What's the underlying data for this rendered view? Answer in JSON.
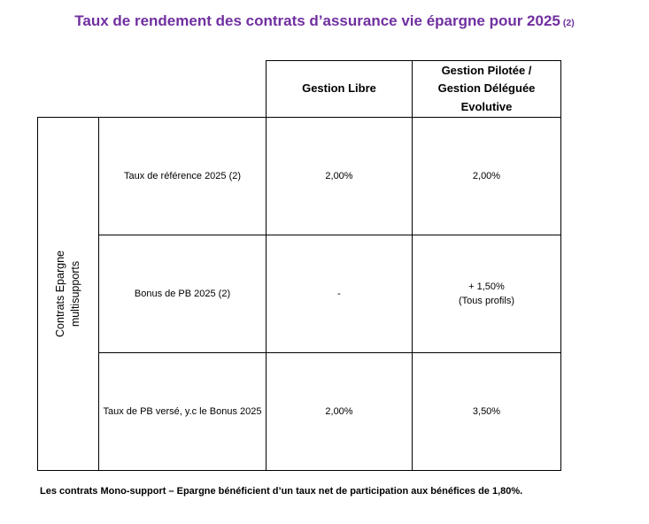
{
  "title": {
    "text": "Taux de rendement des contrats d’assurance vie épargne pour 2025",
    "footnote_ref": "(2)",
    "color": "#7030A0"
  },
  "table": {
    "border_color": "#000000",
    "row_group_label": [
      "Contrats Epargne",
      "multisupports"
    ],
    "column_headers": [
      "Gestion Libre",
      "Gestion Pilotée / Gestion Déléguée Evolutive"
    ],
    "rows": [
      {
        "label": "Taux de référence 2025 (2)",
        "values": [
          "2,00%",
          "2,00%"
        ]
      },
      {
        "label": "Bonus de PB 2025 (2)",
        "values": [
          "-",
          "+ 1,50%"
        ],
        "note": "(Tous profils)"
      },
      {
        "label": "Taux de PB versé, y.c le Bonus 2025",
        "values": [
          "2,00%",
          "3,50%"
        ]
      }
    ]
  },
  "footnote": "Les contrats Mono-support – Epargne bénéficient d’un taux net de participation aux bénéfices de 1,80%."
}
